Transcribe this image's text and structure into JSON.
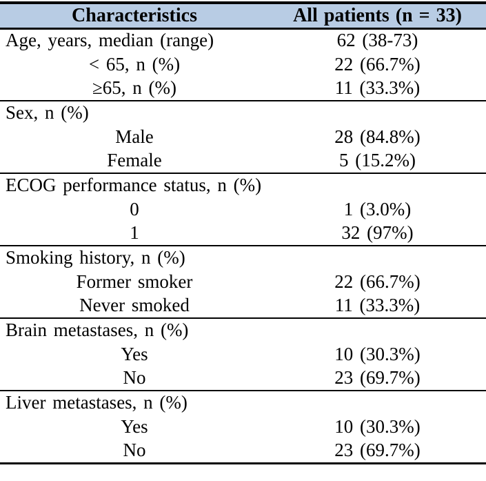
{
  "colors": {
    "header_bg": "#b8cce4",
    "border": "#000000",
    "text": "#000000"
  },
  "table": {
    "header": {
      "characteristics": "Characteristics",
      "all_patients": "All patients (n = 33)"
    },
    "sections": [
      {
        "name": "age",
        "rows": [
          {
            "label": "Age, years, median (range)",
            "value": "62 (38-73)"
          },
          {
            "label": "< 65, n (%)",
            "value": "22 (66.7%)"
          },
          {
            "label": "≥65, n (%)",
            "value": "11 (33.3%)"
          }
        ]
      },
      {
        "name": "sex",
        "rows": [
          {
            "label": "Sex, n (%)",
            "value": ""
          },
          {
            "label": "Male",
            "value": "28 (84.8%)"
          },
          {
            "label": "Female",
            "value": "5 (15.2%)"
          }
        ]
      },
      {
        "name": "ecog",
        "rows": [
          {
            "label": "ECOG performance status, n (%)",
            "value": ""
          },
          {
            "label": "0",
            "value": "1 (3.0%)"
          },
          {
            "label": "1",
            "value": "32 (97%)"
          }
        ]
      },
      {
        "name": "smoking",
        "rows": [
          {
            "label": "Smoking history, n (%)",
            "value": ""
          },
          {
            "label": "Former smoker",
            "value": "22 (66.7%)"
          },
          {
            "label": "Never smoked",
            "value": "11 (33.3%)"
          }
        ]
      },
      {
        "name": "brain_metastases",
        "rows": [
          {
            "label": "Brain metastases, n (%)",
            "value": ""
          },
          {
            "label": "Yes",
            "value": "10 (30.3%)"
          },
          {
            "label": "No",
            "value": "23 (69.7%)"
          }
        ]
      },
      {
        "name": "liver_metastases",
        "rows": [
          {
            "label": "Liver metastases, n (%)",
            "value": ""
          },
          {
            "label": "Yes",
            "value": "10 (30.3%)"
          },
          {
            "label": "No",
            "value": "23 (69.7%)"
          }
        ]
      }
    ]
  }
}
